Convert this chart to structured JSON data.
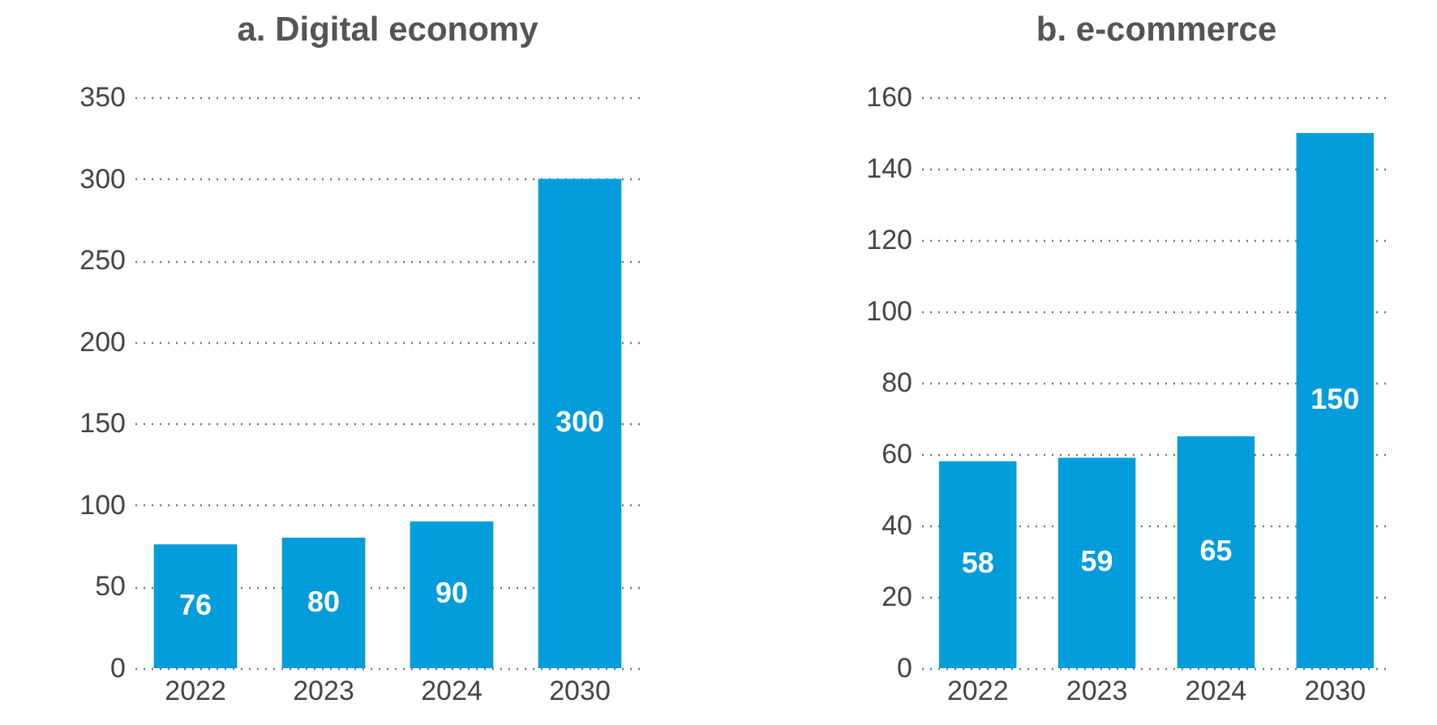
{
  "chart_data": [
    {
      "type": "bar",
      "title": "a.  Digital economy",
      "categories": [
        "2022",
        "2023",
        "2024",
        null,
        "2030"
      ],
      "values": [
        76,
        80,
        90,
        null,
        300
      ],
      "color": "#009cdb",
      "ylim": [
        0,
        350
      ],
      "yticks": [
        0,
        50,
        100,
        150,
        200,
        250,
        300,
        350
      ],
      "grid": "y",
      "data_labels": true
    },
    {
      "type": "bar",
      "title": "b.     e-commerce",
      "categories": [
        "2022",
        "2023",
        "2024",
        null,
        "2030"
      ],
      "values": [
        58,
        59,
        65,
        null,
        150
      ],
      "color": "#009cdb",
      "ylim": [
        0,
        160
      ],
      "yticks": [
        0,
        20,
        40,
        60,
        80,
        100,
        120,
        140,
        160
      ],
      "grid": "y",
      "data_labels": true
    }
  ]
}
